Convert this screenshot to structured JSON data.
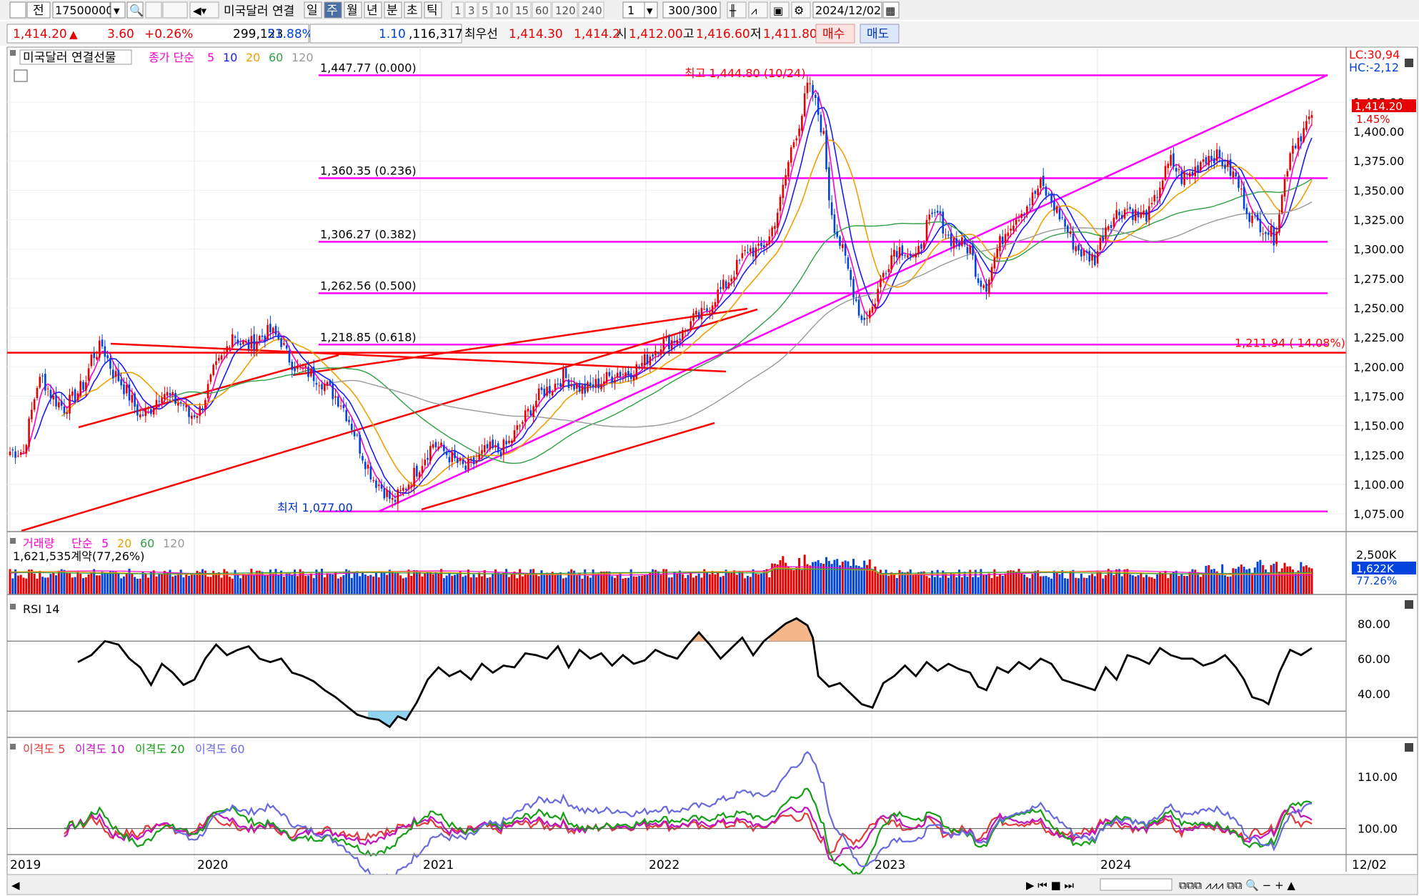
{
  "toolbar": {
    "btn_prev": "전",
    "code": "17500000",
    "name": "미국달러 연결",
    "periods": [
      "일",
      "주",
      "월",
      "년",
      "분",
      "초",
      "틱"
    ],
    "active_period": "주",
    "minute_steps": [
      "1",
      "3",
      "5",
      "10",
      "15",
      "60",
      "120",
      "240"
    ],
    "interval_value": "1",
    "count": "300",
    "count_total": "/300",
    "date": "2024/12/02"
  },
  "quote": {
    "price": "1,414.20",
    "change": "3.60",
    "change_pct": "+0.26%",
    "volume": "299,123",
    "volume_ratio": "51.88%",
    "val1": "1.10",
    "val2": ",116,317",
    "best_label": "최우선",
    "best_ask": "1,414.30",
    "best_bid": "1,414.2",
    "open_label": "시",
    "open": "1,412.00",
    "high_label": "고",
    "high": "1,416.60",
    "low_label": "저",
    "low": "1,411.80",
    "buy": "매수",
    "sell": "매도"
  },
  "chart_data": [
    {
      "type": "candlestick",
      "title": "미국달러 연결선물",
      "legend": {
        "label": "종가 단순",
        "ma": [
          "5",
          "10",
          "20",
          "60",
          "120"
        ]
      },
      "x_ticks": [
        "2019",
        "2020",
        "2021",
        "2022",
        "2023",
        "2024",
        "12/02"
      ],
      "y_ticks": [
        "1,425.00",
        "1,400.00",
        "1,375.00",
        "1,350.00",
        "1,325.00",
        "1,300.00",
        "1,275.00",
        "1,250.00",
        "1,225.00",
        "1,200.00",
        "1,175.00",
        "1,150.00",
        "1,125.00",
        "1,100.00",
        "1,075.00"
      ],
      "ylim": [
        1063.5,
        1462
      ],
      "lc": "LC:30,94",
      "hc": "HC:-2,12",
      "last_price_label": "1,414.20",
      "last_pct_label": "1.45%",
      "fib_levels": [
        {
          "value": 1447.77,
          "label": "1,447.77 (0.000)"
        },
        {
          "value": 1360.35,
          "label": "1,360.35 (0.236)"
        },
        {
          "value": 1306.27,
          "label": "1,306.27 (0.382)"
        },
        {
          "value": 1262.56,
          "label": "1,262.56 (0.500)"
        },
        {
          "value": 1218.85,
          "label": "1,218.85 (0.618)"
        },
        {
          "value": 1077.0,
          "label": ""
        }
      ],
      "hline": {
        "value": 1211.94,
        "label": "1,211.94 ( 14.08%)"
      },
      "max_label": "최고 1,444.80 (10/24)",
      "min_label": "최저 1,0̸?0?0?0?301/0?0?0?",
      "min_label_raw": "최저 1,077.00",
      "ohlc_close_knots": [
        [
          0,
          1128
        ],
        [
          5,
          1128
        ],
        [
          10,
          1185
        ],
        [
          12,
          1190
        ],
        [
          16,
          1173
        ],
        [
          20,
          1165
        ],
        [
          24,
          1175
        ],
        [
          28,
          1188
        ],
        [
          30,
          1208
        ],
        [
          34,
          1218
        ],
        [
          38,
          1195
        ],
        [
          40,
          1190
        ],
        [
          44,
          1175
        ],
        [
          48,
          1158
        ],
        [
          52,
          1165
        ],
        [
          56,
          1180
        ],
        [
          60,
          1172
        ],
        [
          64,
          1168
        ],
        [
          66,
          1158
        ],
        [
          70,
          1163
        ],
        [
          72,
          1175
        ],
        [
          75,
          1195
        ],
        [
          79,
          1210
        ],
        [
          82,
          1230
        ],
        [
          85,
          1220
        ],
        [
          88,
          1218
        ],
        [
          92,
          1225
        ],
        [
          96,
          1230
        ],
        [
          100,
          1222
        ],
        [
          102,
          1210
        ],
        [
          106,
          1198
        ],
        [
          110,
          1195
        ],
        [
          114,
          1190
        ],
        [
          118,
          1180
        ],
        [
          122,
          1170
        ],
        [
          126,
          1150
        ],
        [
          130,
          1125
        ],
        [
          134,
          1105
        ],
        [
          138,
          1095
        ],
        [
          141,
          1085
        ],
        [
          144,
          1092
        ],
        [
          148,
          1105
        ],
        [
          152,
          1120
        ],
        [
          156,
          1135
        ],
        [
          160,
          1128
        ],
        [
          164,
          1120
        ],
        [
          168,
          1113
        ],
        [
          172,
          1120
        ],
        [
          176,
          1130
        ],
        [
          180,
          1128
        ],
        [
          184,
          1135
        ],
        [
          188,
          1150
        ],
        [
          192,
          1165
        ],
        [
          196,
          1178
        ],
        [
          200,
          1183
        ],
        [
          204,
          1192
        ],
        [
          208,
          1185
        ],
        [
          212,
          1180
        ],
        [
          216,
          1185
        ],
        [
          220,
          1190
        ],
        [
          224,
          1195
        ],
        [
          228,
          1195
        ],
        [
          232,
          1200
        ],
        [
          236,
          1210
        ],
        [
          240,
          1220
        ],
        [
          244,
          1222
        ],
        [
          248,
          1228
        ],
        [
          252,
          1240
        ],
        [
          256,
          1245
        ],
        [
          260,
          1260
        ],
        [
          264,
          1270
        ],
        [
          268,
          1285
        ],
        [
          272,
          1300
        ],
        [
          276,
          1298
        ],
        [
          280,
          1310
        ],
        [
          284,
          1340
        ],
        [
          288,
          1385
        ],
        [
          292,
          1415
        ],
        [
          294,
          1438
        ],
        [
          296,
          1432
        ],
        [
          298,
          1415
        ],
        [
          300,
          1395
        ],
        [
          302,
          1345
        ],
        [
          304,
          1320
        ],
        [
          306,
          1305
        ],
        [
          308,
          1290
        ],
        [
          311,
          1265
        ],
        [
          314,
          1240
        ],
        [
          318,
          1250
        ],
        [
          322,
          1280
        ],
        [
          326,
          1300
        ],
        [
          330,
          1300
        ],
        [
          334,
          1290
        ],
        [
          338,
          1320
        ],
        [
          342,
          1330
        ],
        [
          346,
          1310
        ],
        [
          350,
          1305
        ],
        [
          354,
          1300
        ],
        [
          357,
          1275
        ],
        [
          360,
          1270
        ],
        [
          364,
          1300
        ],
        [
          368,
          1320
        ],
        [
          372,
          1330
        ],
        [
          376,
          1340
        ],
        [
          380,
          1355
        ],
        [
          384,
          1340
        ],
        [
          388,
          1325
        ],
        [
          392,
          1305
        ],
        [
          396,
          1295
        ],
        [
          400,
          1292
        ],
        [
          404,
          1320
        ],
        [
          408,
          1330
        ],
        [
          412,
          1335
        ],
        [
          416,
          1328
        ],
        [
          420,
          1330
        ],
        [
          422,
          1340
        ],
        [
          424,
          1355
        ],
        [
          428,
          1375
        ],
        [
          432,
          1360
        ],
        [
          436,
          1365
        ],
        [
          440,
          1378
        ],
        [
          444,
          1380
        ],
        [
          448,
          1372
        ],
        [
          452,
          1360
        ],
        [
          455,
          1340
        ],
        [
          458,
          1325
        ],
        [
          462,
          1320
        ],
        [
          466,
          1310
        ],
        [
          469,
          1345
        ],
        [
          472,
          1385
        ],
        [
          476,
          1398
        ],
        [
          480,
          1414
        ]
      ],
      "bars_count": 481
    },
    {
      "type": "bar",
      "title": "거래량",
      "legend": {
        "label": "단순",
        "ma": [
          "5",
          "20",
          "60",
          "120"
        ]
      },
      "info": "1,621,535계약(77,26%)",
      "y_ticks": [
        "2,500K"
      ],
      "last_label": "1,622K",
      "last_pct": "77.26%"
    },
    {
      "type": "line",
      "title": "RSI 14",
      "y_ticks": [
        "80.00",
        "60.00",
        "40.00"
      ],
      "upper": 70,
      "lower": 30,
      "knots": [
        [
          25,
          58
        ],
        [
          30,
          62
        ],
        [
          35,
          70
        ],
        [
          40,
          68
        ],
        [
          44,
          60
        ],
        [
          48,
          55
        ],
        [
          52,
          45
        ],
        [
          56,
          57
        ],
        [
          60,
          52
        ],
        [
          64,
          45
        ],
        [
          68,
          48
        ],
        [
          72,
          60
        ],
        [
          76,
          68
        ],
        [
          80,
          62
        ],
        [
          84,
          65
        ],
        [
          88,
          67
        ],
        [
          92,
          60
        ],
        [
          96,
          58
        ],
        [
          100,
          60
        ],
        [
          104,
          52
        ],
        [
          108,
          50
        ],
        [
          112,
          47
        ],
        [
          116,
          42
        ],
        [
          120,
          38
        ],
        [
          124,
          33
        ],
        [
          128,
          28
        ],
        [
          132,
          26
        ],
        [
          136,
          25
        ],
        [
          140,
          21
        ],
        [
          143,
          27
        ],
        [
          146,
          25
        ],
        [
          150,
          35
        ],
        [
          154,
          48
        ],
        [
          158,
          55
        ],
        [
          162,
          50
        ],
        [
          166,
          53
        ],
        [
          170,
          48
        ],
        [
          174,
          57
        ],
        [
          178,
          52
        ],
        [
          182,
          56
        ],
        [
          186,
          55
        ],
        [
          190,
          63
        ],
        [
          194,
          62
        ],
        [
          198,
          60
        ],
        [
          202,
          67
        ],
        [
          206,
          55
        ],
        [
          210,
          65
        ],
        [
          214,
          60
        ],
        [
          218,
          63
        ],
        [
          222,
          56
        ],
        [
          226,
          62
        ],
        [
          230,
          57
        ],
        [
          234,
          59
        ],
        [
          238,
          65
        ],
        [
          242,
          62
        ],
        [
          246,
          60
        ],
        [
          250,
          68
        ],
        [
          254,
          75
        ],
        [
          258,
          68
        ],
        [
          262,
          60
        ],
        [
          266,
          66
        ],
        [
          270,
          72
        ],
        [
          274,
          62
        ],
        [
          278,
          70
        ],
        [
          282,
          75
        ],
        [
          286,
          80
        ],
        [
          290,
          83
        ],
        [
          294,
          79
        ],
        [
          296,
          72
        ],
        [
          298,
          50
        ],
        [
          302,
          44
        ],
        [
          306,
          46
        ],
        [
          310,
          40
        ],
        [
          314,
          34
        ],
        [
          318,
          32
        ],
        [
          322,
          46
        ],
        [
          326,
          50
        ],
        [
          330,
          56
        ],
        [
          334,
          50
        ],
        [
          338,
          58
        ],
        [
          342,
          53
        ],
        [
          346,
          57
        ],
        [
          350,
          54
        ],
        [
          354,
          52
        ],
        [
          357,
          44
        ],
        [
          360,
          42
        ],
        [
          364,
          55
        ],
        [
          368,
          52
        ],
        [
          372,
          58
        ],
        [
          376,
          54
        ],
        [
          380,
          60
        ],
        [
          384,
          57
        ],
        [
          388,
          48
        ],
        [
          392,
          46
        ],
        [
          396,
          44
        ],
        [
          400,
          42
        ],
        [
          404,
          55
        ],
        [
          408,
          48
        ],
        [
          412,
          62
        ],
        [
          416,
          60
        ],
        [
          420,
          57
        ],
        [
          424,
          66
        ],
        [
          428,
          62
        ],
        [
          432,
          60
        ],
        [
          436,
          60
        ],
        [
          440,
          56
        ],
        [
          444,
          58
        ],
        [
          448,
          62
        ],
        [
          452,
          55
        ],
        [
          455,
          48
        ],
        [
          458,
          38
        ],
        [
          462,
          36
        ],
        [
          464,
          34
        ],
        [
          468,
          52
        ],
        [
          472,
          65
        ],
        [
          476,
          62
        ],
        [
          480,
          66
        ]
      ]
    },
    {
      "type": "line",
      "title": "이격도",
      "series_names": [
        "이격도 5",
        "이격도 10",
        "이격도 20",
        "이격도 60"
      ],
      "y_ticks": [
        "110.00",
        "100.00"
      ]
    }
  ],
  "bottom": {
    "scroll_left": "◀"
  },
  "colors": {
    "up": "#e60000",
    "down": "#0044dd",
    "fib": "#ff00ff",
    "trend": "#ff0000",
    "ma5": "#ff00cc",
    "ma10": "#1a1aff",
    "ma20": "#f0a000",
    "ma60": "#2ea043",
    "ma120": "#999999"
  }
}
